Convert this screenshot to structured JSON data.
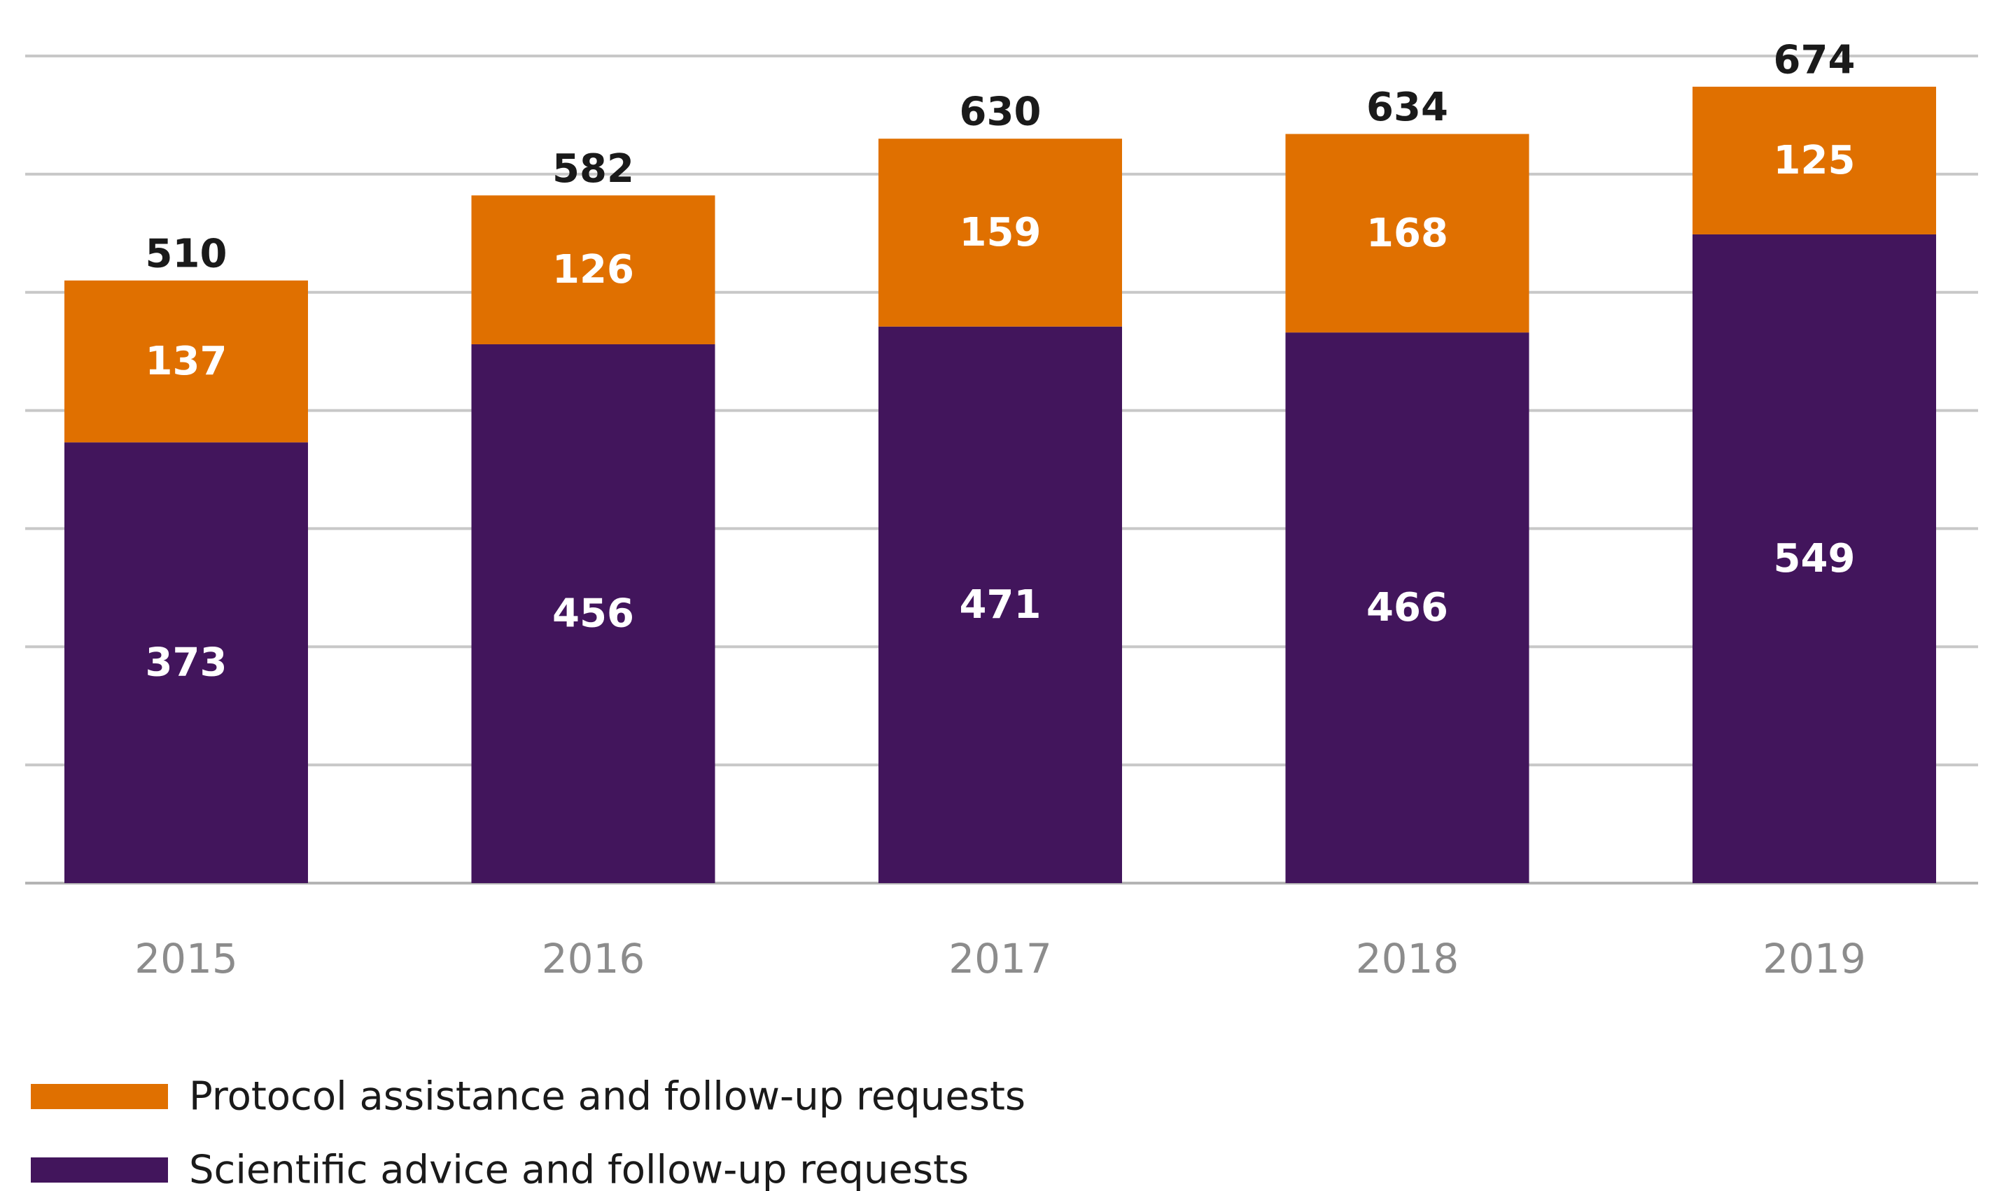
{
  "chart_data": {
    "type": "bar",
    "stacked": true,
    "categories": [
      "2015",
      "2016",
      "2017",
      "2018",
      "2019"
    ],
    "series": [
      {
        "name": "Scientific advice and follow-up requests",
        "values": [
          373,
          456,
          471,
          466,
          549
        ],
        "color": "#42155c"
      },
      {
        "name": "Protocol assistance and follow-up requests",
        "values": [
          137,
          126,
          159,
          168,
          125
        ],
        "color": "#e07000"
      }
    ],
    "totals": [
      510,
      582,
      630,
      634,
      674
    ],
    "ylim": [
      0,
      700
    ],
    "grid": true,
    "legend": "bottom-left",
    "legend_order": [
      1,
      0
    ],
    "title": "",
    "xlabel": "",
    "ylabel": ""
  }
}
